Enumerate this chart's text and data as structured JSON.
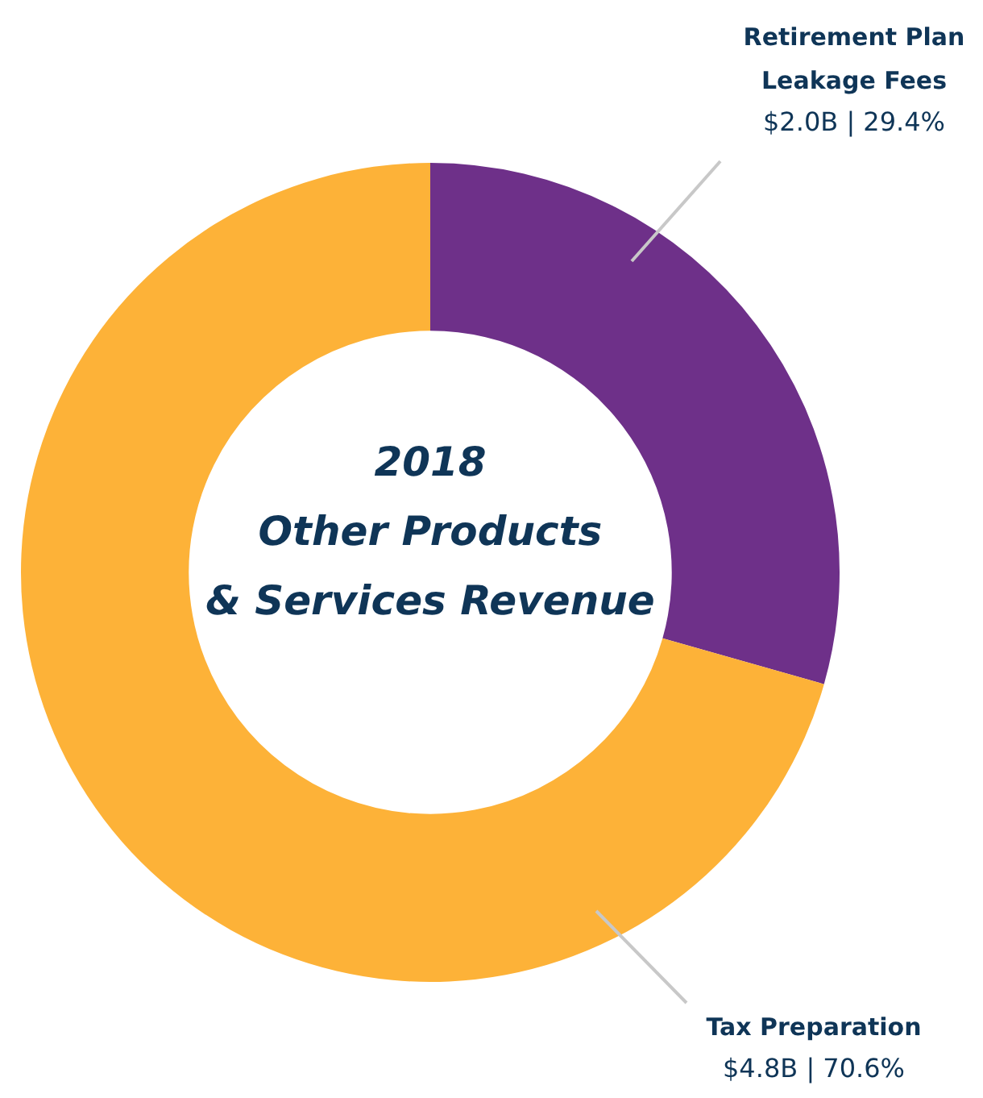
{
  "chart_data": {
    "type": "donut",
    "title": "2018\nOther Products\n& Services Revenue",
    "categories": [
      "Retirement Plan Leakage Fees",
      "Tax Preparation"
    ],
    "values": [
      29.4,
      70.6
    ],
    "colors": [
      "#6e3089",
      "#fdb238"
    ],
    "value_labels": [
      "$2.0B | 29.4%",
      "$4.8B | 70.6%"
    ],
    "legend": false
  }
}
